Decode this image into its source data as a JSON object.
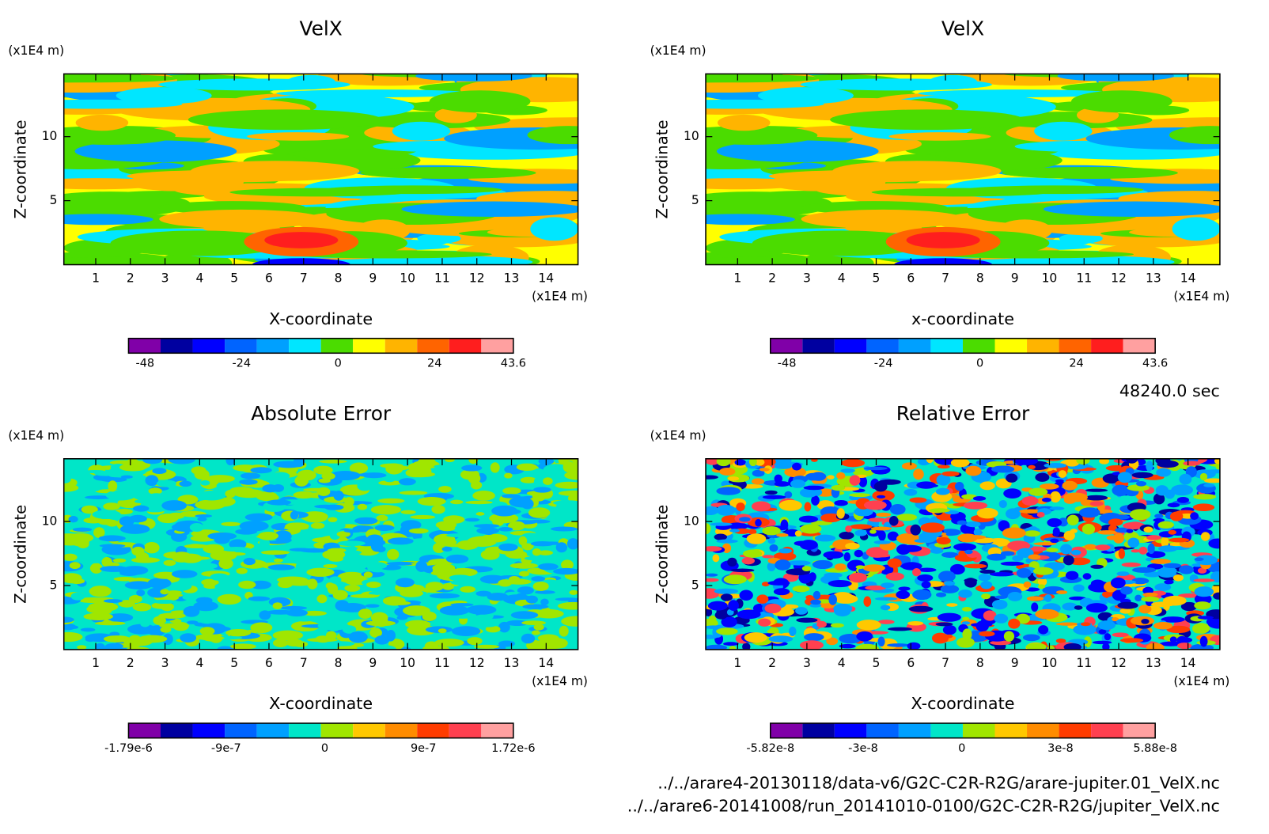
{
  "chart_data": [
    {
      "type": "contour",
      "title": "VelX",
      "x_label": "X-coordinate",
      "y_label": "Z-coordinate",
      "x_unit": "(x1E4 m)",
      "y_unit": "(x1E4 m)",
      "xlim": [
        0.08,
        14.92
      ],
      "ylim": [
        0,
        14.9
      ],
      "xticks": [
        1,
        2,
        3,
        4,
        5,
        6,
        7,
        8,
        9,
        10,
        11,
        12,
        13,
        14
      ],
      "yticks": [
        5,
        10
      ],
      "colorbar": {
        "colors": [
          "#8000a8",
          "#0000a0",
          "#0000ff",
          "#0064ff",
          "#00a0ff",
          "#00e6ff",
          "#4bdc00",
          "#ffff00",
          "#ffb400",
          "#ff6400",
          "#ff1e1e",
          "#ffa0a0"
        ],
        "lim": [
          -52.1,
          43.6
        ],
        "ticks": [
          -48,
          -24,
          0,
          24,
          43.6
        ]
      }
    },
    {
      "type": "contour",
      "title": "VelX",
      "x_label": "x-coordinate",
      "y_label": "Z-coordinate",
      "x_unit": "(x1E4 m)",
      "y_unit": "(x1E4 m)",
      "xlim": [
        0.08,
        14.92
      ],
      "ylim": [
        0,
        14.9
      ],
      "xticks": [
        1,
        2,
        3,
        4,
        5,
        6,
        7,
        8,
        9,
        10,
        11,
        12,
        13,
        14
      ],
      "yticks": [
        5,
        10
      ],
      "colorbar": {
        "colors": [
          "#8000a8",
          "#0000a0",
          "#0000ff",
          "#0064ff",
          "#00a0ff",
          "#00e6ff",
          "#4bdc00",
          "#ffff00",
          "#ffb400",
          "#ff6400",
          "#ff1e1e",
          "#ffa0a0"
        ],
        "lim": [
          -52.1,
          43.6
        ],
        "ticks": [
          -48,
          -24,
          0,
          24,
          43.6
        ]
      }
    },
    {
      "type": "contour",
      "title": "Absolute Error",
      "x_label": "X-coordinate",
      "y_label": "Z-coordinate",
      "x_unit": "(x1E4 m)",
      "y_unit": "(x1E4 m)",
      "xlim": [
        0.08,
        14.92
      ],
      "ylim": [
        0,
        14.9
      ],
      "xticks": [
        1,
        2,
        3,
        4,
        5,
        6,
        7,
        8,
        9,
        10,
        11,
        12,
        13,
        14
      ],
      "yticks": [
        5,
        10
      ],
      "colorbar": {
        "colors": [
          "#8000a8",
          "#0000a0",
          "#0000ff",
          "#0064ff",
          "#00a0ff",
          "#00e6c8",
          "#a0e600",
          "#ffc800",
          "#ff8c00",
          "#ff3c00",
          "#ff4050",
          "#ffa0a0"
        ],
        "lim": [
          -1.79e-06,
          1.72e-06
        ],
        "ticks": [
          {
            "value": -1.79e-06,
            "label": "-1.79e-6"
          },
          {
            "value": -9e-07,
            "label": "-9e-7"
          },
          0,
          {
            "value": 9e-07,
            "label": "9e-7"
          },
          {
            "value": 1.72e-06,
            "label": "1.72e-6"
          }
        ]
      }
    },
    {
      "type": "contour",
      "title": "Relative Error",
      "x_label": "X-coordinate",
      "y_label": "Z-coordinate",
      "x_unit": "(x1E4 m)",
      "y_unit": "(x1E4 m)",
      "xlim": [
        0.08,
        14.92
      ],
      "ylim": [
        0,
        14.9
      ],
      "xticks": [
        1,
        2,
        3,
        4,
        5,
        6,
        7,
        8,
        9,
        10,
        11,
        12,
        13,
        14
      ],
      "yticks": [
        5,
        10
      ],
      "colorbar": {
        "colors": [
          "#8000a8",
          "#0000a0",
          "#0000ff",
          "#0064ff",
          "#00a0ff",
          "#00e6c8",
          "#a0e600",
          "#ffc800",
          "#ff8c00",
          "#ff3c00",
          "#ff4050",
          "#ffa0a0"
        ],
        "lim": [
          -5.82e-08,
          5.88e-08
        ],
        "ticks": [
          {
            "value": -5.82e-08,
            "label": "-5.82e-8"
          },
          {
            "value": -3e-08,
            "label": "-3e-8"
          },
          0,
          {
            "value": 3e-08,
            "label": "3e-8"
          },
          {
            "value": 5.88e-08,
            "label": "5.88e-8"
          }
        ]
      }
    }
  ],
  "time": "48240.0 sec",
  "files": [
    "../../arare4-20130118/data-v6/G2C-C2R-R2G/arare-jupiter.01_VelX.nc",
    "../../arare6-20141008/run_20141010-0100/G2C-C2R-R2G/jupiter_VelX.nc"
  ]
}
